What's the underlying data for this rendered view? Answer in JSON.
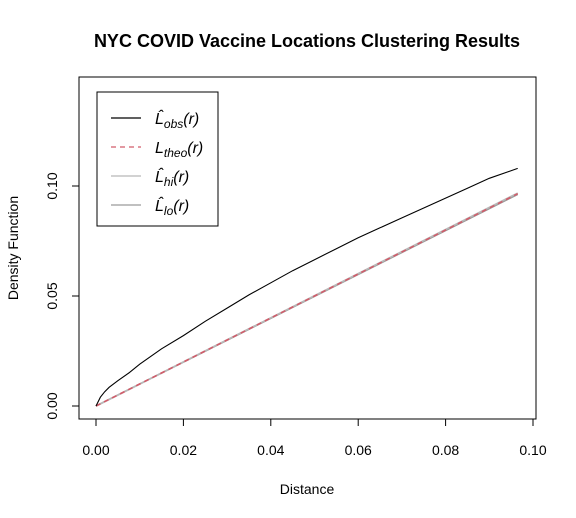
{
  "chart_data": {
    "type": "line",
    "title": "NYC COVID Vaccine Locations Clustering Results",
    "xlabel": "Distance",
    "ylabel": "Density Function",
    "xlim": [
      0,
      0.1
    ],
    "ylim": [
      0,
      0.14
    ],
    "x_ticks": [
      "0.00",
      "0.02",
      "0.04",
      "0.06",
      "0.08",
      "0.10"
    ],
    "y_ticks": [
      "0.00",
      "0.05",
      "0.10"
    ],
    "grid": false,
    "legend_position": "top-left",
    "series": [
      {
        "name": "L̂obs(r)",
        "name_base": "L̂",
        "name_sub": "obs",
        "name_tail": "(r)",
        "color": "#000000",
        "dash": "solid",
        "x": [
          0,
          0.0005,
          0.001,
          0.002,
          0.003,
          0.005,
          0.0075,
          0.01,
          0.015,
          0.02,
          0.025,
          0.03,
          0.035,
          0.04,
          0.045,
          0.05,
          0.055,
          0.06,
          0.065,
          0.07,
          0.075,
          0.08,
          0.085,
          0.09,
          0.0965
        ],
        "y": [
          0,
          0.002,
          0.004,
          0.0065,
          0.0085,
          0.0115,
          0.015,
          0.019,
          0.026,
          0.032,
          0.0385,
          0.0445,
          0.0505,
          0.056,
          0.0615,
          0.0665,
          0.0715,
          0.0765,
          0.081,
          0.0855,
          0.09,
          0.0945,
          0.099,
          0.1035,
          0.108
        ]
      },
      {
        "name": "Ltheo(r)",
        "name_base": "L",
        "name_sub": "theo",
        "name_tail": "(r)",
        "color": "#d25c6a",
        "dash": "dashed",
        "x": [
          0,
          0.0965
        ],
        "y": [
          0,
          0.0965
        ]
      },
      {
        "name": "L̂hi(r)",
        "name_base": "L̂",
        "name_sub": "hi",
        "name_tail": "(r)",
        "color": "#b8b8b8",
        "dash": "solid",
        "x": [
          0,
          0.0965
        ],
        "y": [
          0,
          0.0968
        ]
      },
      {
        "name": "L̂lo(r)",
        "name_base": "L̂",
        "name_sub": "lo",
        "name_tail": "(r)",
        "color": "#9a9a9a",
        "dash": "solid",
        "x": [
          0,
          0.0965
        ],
        "y": [
          0,
          0.0962
        ]
      }
    ]
  }
}
